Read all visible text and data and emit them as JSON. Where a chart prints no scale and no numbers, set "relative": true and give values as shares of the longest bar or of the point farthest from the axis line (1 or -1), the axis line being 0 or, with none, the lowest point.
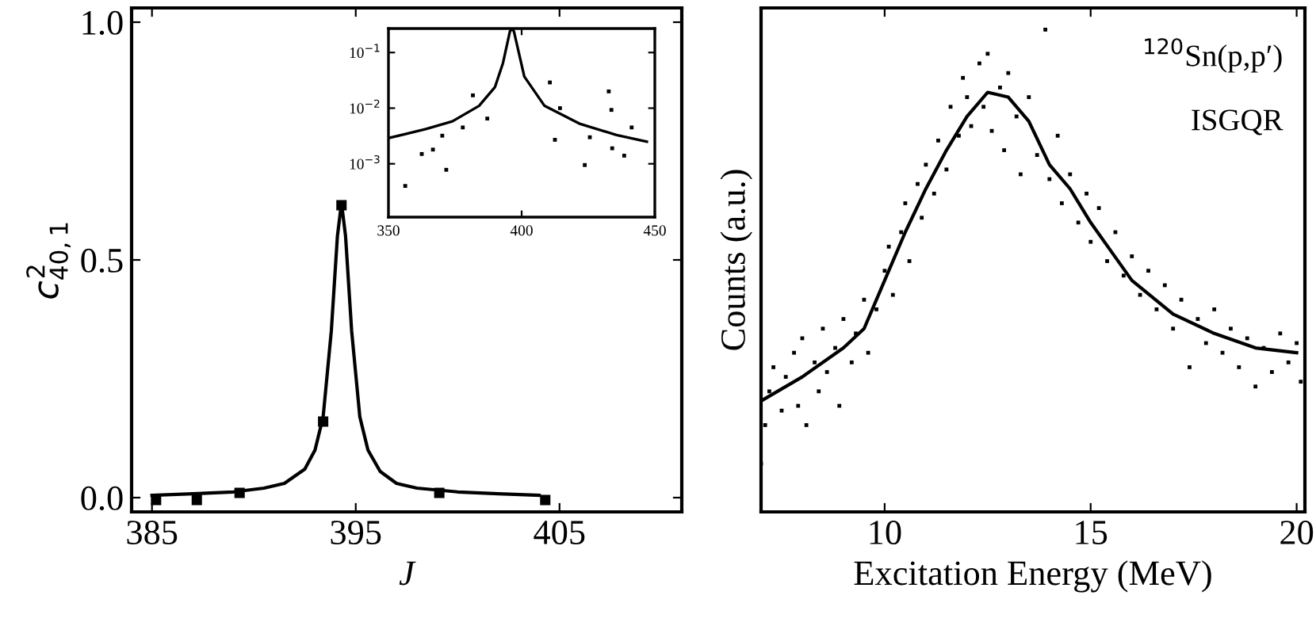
{
  "chart_data": [
    {
      "type": "line",
      "xlabel": "J",
      "ylabel": "c$^{2}$$_{40,1}$",
      "xlim": [
        384,
        411
      ],
      "ylim": [
        -0.03,
        1.03
      ],
      "xticks": [
        385,
        395,
        405
      ],
      "yticks": [
        {
          "value": 0,
          "label": "0.0"
        },
        0.5,
        {
          "value": 1,
          "label": "1.0"
        }
      ],
      "series": [
        {
          "color": "#000000",
          "x": [
            385,
            387,
            389,
            390.5,
            391.5,
            392.5,
            393,
            393.4,
            393.8,
            394.1,
            394.3,
            394.5,
            394.8,
            395.2,
            395.6,
            396.2,
            397,
            398,
            400,
            402,
            404
          ],
          "values": [
            0.005,
            0.008,
            0.012,
            0.02,
            0.03,
            0.06,
            0.1,
            0.17,
            0.35,
            0.55,
            0.62,
            0.55,
            0.35,
            0.17,
            0.1,
            0.055,
            0.03,
            0.02,
            0.012,
            0.008,
            0.005
          ]
        },
        {
          "type": "scatter",
          "color": "#000000",
          "marker": "square",
          "x": [
            385.2,
            387.2,
            389.3,
            393.4,
            394.3,
            399.1,
            404.3
          ],
          "values": [
            -0.005,
            -0.005,
            0.01,
            0.16,
            0.615,
            0.01,
            -0.005
          ]
        }
      ]
    },
    {
      "type": "line",
      "log": "y",
      "xlim": [
        350,
        450
      ],
      "ylim": [
        0.00011,
        0.27
      ],
      "xticks": [
        350,
        400,
        450
      ],
      "yticks": [
        {
          "value": 0.1,
          "label": "10$^{−1}$"
        },
        {
          "value": 0.01,
          "label": "10$^{−2}$"
        },
        {
          "value": 0.001,
          "label": "10$^{−3}$"
        }
      ],
      "series": [
        {
          "color": "#000000",
          "x": [
            350,
            364,
            374,
            384,
            390,
            393,
            395.6,
            396.5,
            397.1,
            401,
            408.6,
            422,
            435.6,
            447
          ],
          "values": [
            0.0029,
            0.0042,
            0.0058,
            0.011,
            0.024,
            0.065,
            0.24,
            0.27,
            0.24,
            0.037,
            0.011,
            0.0052,
            0.0033,
            0.0025
          ]
        },
        {
          "type": "scatter",
          "color": "#000000",
          "marker": "square",
          "x": [
            356.3,
            362.5,
            366.7,
            370.2,
            371.7,
            377.9,
            381.7,
            387.1,
            410.6,
            414.4,
            412.5,
            423.7,
            425.6,
            432.7,
            433.7,
            434.0,
            438.5,
            441.3
          ],
          "values": [
            0.0004,
            0.0015,
            0.0018,
            0.0032,
            0.00078,
            0.0045,
            0.017,
            0.0065,
            0.029,
            0.01,
            0.0027,
            0.00095,
            0.003,
            0.02,
            0.0093,
            0.0019,
            0.0014,
            0.0045
          ]
        }
      ]
    },
    {
      "type": "scatter",
      "relative": true,
      "xlabel": "Excitation Energy (MeV)",
      "ylabel": "Counts (a.u.)",
      "xlim": [
        7,
        20.2
      ],
      "xticks": [
        10,
        15,
        20
      ],
      "annotations": [
        "$^{120}$Sn(p,p′)",
        "ISGQR"
      ],
      "series": [
        {
          "color": "#000000",
          "marker": "square",
          "x": [
            7.0,
            7.1,
            7.2,
            7.3,
            7.5,
            7.6,
            7.8,
            7.9,
            8.0,
            8.1,
            8.3,
            8.4,
            8.5,
            8.6,
            8.8,
            8.9,
            9.0,
            9.2,
            9.3,
            9.5,
            9.6,
            9.8,
            10.0,
            10.1,
            10.2,
            10.4,
            10.5,
            10.6,
            10.8,
            10.9,
            11.0,
            11.2,
            11.3,
            11.5,
            11.6,
            11.8,
            11.9,
            12.0,
            12.1,
            12.3,
            12.4,
            12.5,
            12.6,
            12.8,
            12.9,
            13.0,
            13.2,
            13.3,
            13.5,
            13.7,
            13.9,
            14.0,
            14.2,
            14.3,
            14.5,
            14.7,
            14.9,
            15.0,
            15.2,
            15.4,
            15.6,
            15.8,
            16.0,
            16.2,
            16.4,
            16.6,
            16.8,
            17.0,
            17.2,
            17.4,
            17.6,
            17.8,
            18.0,
            18.2,
            18.4,
            18.6,
            18.8,
            19.0,
            19.2,
            19.4,
            19.6,
            19.8,
            20.0,
            20.1
          ],
          "values": [
            0.1,
            0.18,
            0.25,
            0.3,
            0.21,
            0.28,
            0.33,
            0.22,
            0.36,
            0.18,
            0.31,
            0.25,
            0.38,
            0.29,
            0.34,
            0.22,
            0.4,
            0.31,
            0.37,
            0.44,
            0.33,
            0.42,
            0.5,
            0.55,
            0.45,
            0.58,
            0.64,
            0.52,
            0.68,
            0.61,
            0.72,
            0.66,
            0.77,
            0.71,
            0.84,
            0.78,
            0.9,
            0.86,
            0.8,
            0.93,
            0.84,
            0.95,
            0.79,
            0.88,
            0.75,
            0.91,
            0.82,
            0.7,
            0.86,
            0.74,
            1.0,
            0.69,
            0.78,
            0.64,
            0.7,
            0.6,
            0.66,
            0.56,
            0.63,
            0.52,
            0.58,
            0.49,
            0.53,
            0.45,
            0.5,
            0.42,
            0.47,
            0.38,
            0.44,
            0.3,
            0.4,
            0.35,
            0.42,
            0.33,
            0.38,
            0.3,
            0.36,
            0.26,
            0.34,
            0.29,
            0.37,
            0.31,
            0.35,
            0.27
          ]
        },
        {
          "type": "line",
          "color": "#000000",
          "x": [
            7,
            8,
            9,
            9.5,
            10,
            10.5,
            11,
            11.5,
            12,
            12.5,
            13,
            13.5,
            14,
            14.5,
            15,
            15.5,
            16,
            17,
            18,
            19,
            20
          ],
          "values": [
            0.23,
            0.28,
            0.34,
            0.38,
            0.48,
            0.58,
            0.67,
            0.75,
            0.82,
            0.87,
            0.86,
            0.81,
            0.72,
            0.67,
            0.6,
            0.54,
            0.48,
            0.41,
            0.37,
            0.34,
            0.33
          ]
        }
      ]
    }
  ]
}
